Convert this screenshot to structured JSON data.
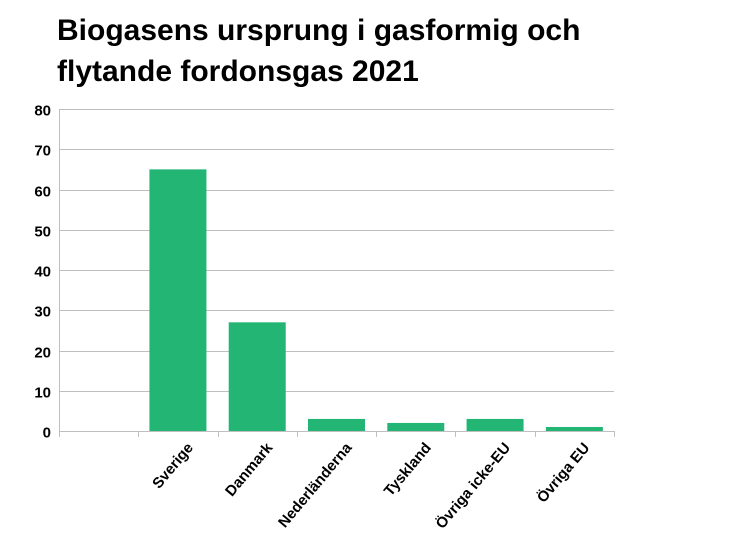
{
  "chart_data": {
    "type": "bar",
    "title_lines": [
      "Biogasens ursprung i gasformig och",
      "flytande fordonsgas 2021"
    ],
    "categories": [
      "",
      "Sverige",
      "Danmark",
      "Nederländerna",
      "Tyskland",
      "Övriga icke-EU",
      "Övriga EU"
    ],
    "values": [
      null,
      65,
      27,
      3,
      2,
      3,
      1
    ],
    "yticks": [
      "0",
      "10",
      "20",
      "30",
      "40",
      "50",
      "60",
      "70",
      "80"
    ],
    "ylim": [
      0,
      80
    ],
    "grid": true,
    "bar_color": "#22b573",
    "grid_color": "#bfbfbf"
  }
}
